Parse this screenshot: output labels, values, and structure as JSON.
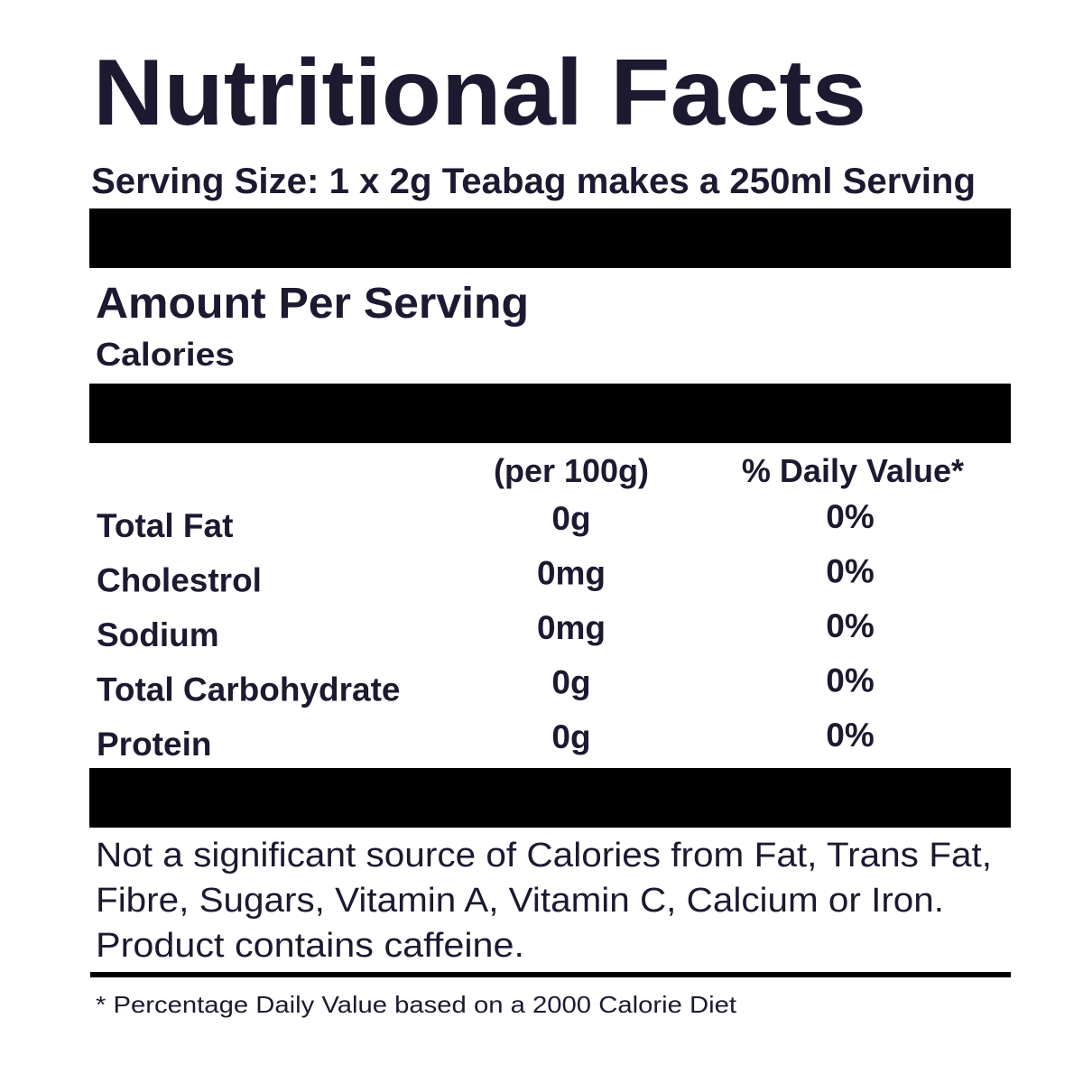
{
  "title": "Nutritional Facts",
  "serving_size": "Serving Size: 1 x 2g Teabag makes a 250ml Serving",
  "amount_heading": "Amount Per Serving",
  "calories_label": "Calories",
  "table": {
    "columns": [
      "(per 100g)",
      "% Daily Value*"
    ],
    "rows": [
      [
        "Total Fat",
        "0g",
        "0%"
      ],
      [
        "Cholestrol",
        "0mg",
        "0%"
      ],
      [
        "Sodium",
        "0mg",
        "0%"
      ],
      [
        "Total Carbohydrate",
        "0g",
        "0%"
      ],
      [
        "Protein",
        "0g",
        "0%"
      ]
    ]
  },
  "note": [
    "Not a significant source of Calories from Fat, Trans Fat,",
    "Fibre, Sugars, Vitamin A, Vitamin C, Calcium or Iron.",
    "Product contains caffeine."
  ],
  "footnote": "* Percentage Daily Value based on a 2000 Calorie Diet"
}
